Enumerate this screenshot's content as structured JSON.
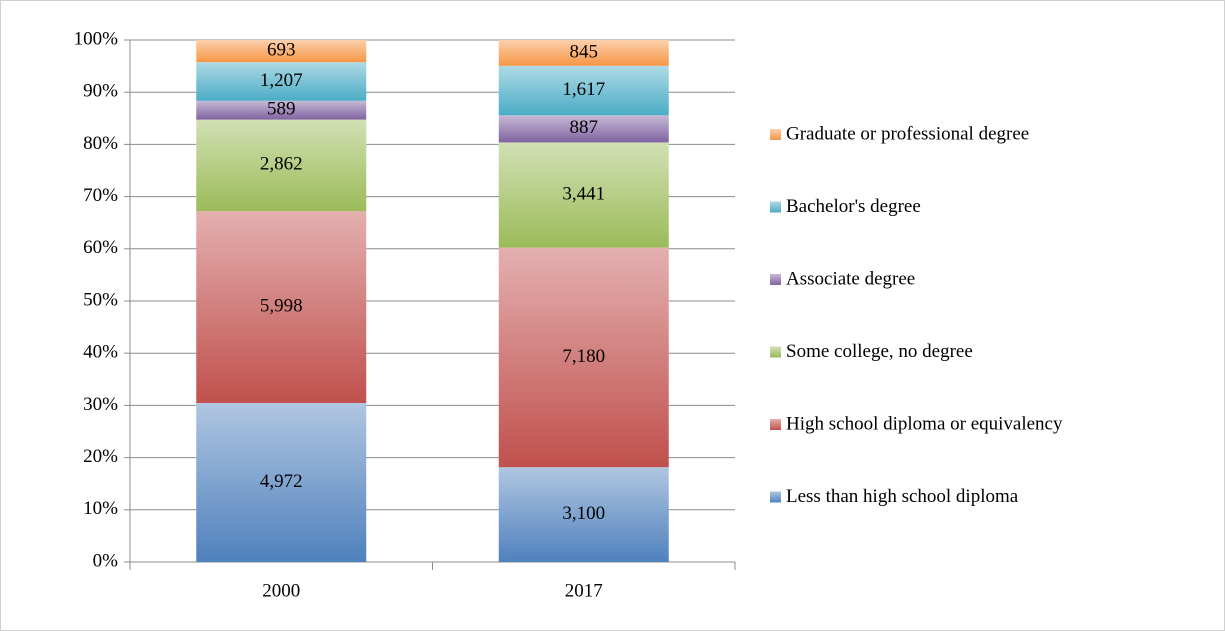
{
  "chart_data": {
    "type": "bar",
    "stacking": "percent",
    "categories": [
      "2000",
      "2017"
    ],
    "series": [
      {
        "name": "Less than high school diploma",
        "color": "#4f81bd",
        "values": [
          4972,
          3100
        ],
        "value_labels": [
          "4,972",
          "3,100"
        ]
      },
      {
        "name": "High school diploma or equivalency",
        "color": "#c0504d",
        "values": [
          5998,
          7180
        ],
        "value_labels": [
          "5,998",
          "7,180"
        ]
      },
      {
        "name": "Some college, no degree",
        "color": "#9bbb59",
        "values": [
          2862,
          3441
        ],
        "value_labels": [
          "2,862",
          "3,441"
        ]
      },
      {
        "name": "Associate degree",
        "color": "#8064a2",
        "values": [
          589,
          887
        ],
        "value_labels": [
          "589",
          "887"
        ]
      },
      {
        "name": "Bachelor's degree",
        "color": "#4bacc6",
        "values": [
          1207,
          1617
        ],
        "value_labels": [
          "1,207",
          "1,617"
        ]
      },
      {
        "name": "Graduate or professional degree",
        "color": "#f79646",
        "values": [
          693,
          845
        ],
        "value_labels": [
          "693",
          "845"
        ]
      }
    ],
    "ylim": [
      0,
      100
    ],
    "yticks": [
      {
        "value": 0,
        "label": "0%"
      },
      {
        "value": 10,
        "label": "10%"
      },
      {
        "value": 20,
        "label": "20%"
      },
      {
        "value": 30,
        "label": "30%"
      },
      {
        "value": 40,
        "label": "40%"
      },
      {
        "value": 50,
        "label": "50%"
      },
      {
        "value": 60,
        "label": "60%"
      },
      {
        "value": 70,
        "label": "70%"
      },
      {
        "value": 80,
        "label": "80%"
      },
      {
        "value": 90,
        "label": "90%"
      },
      {
        "value": 100,
        "label": "100%"
      }
    ],
    "grid": true,
    "legend": "right"
  }
}
